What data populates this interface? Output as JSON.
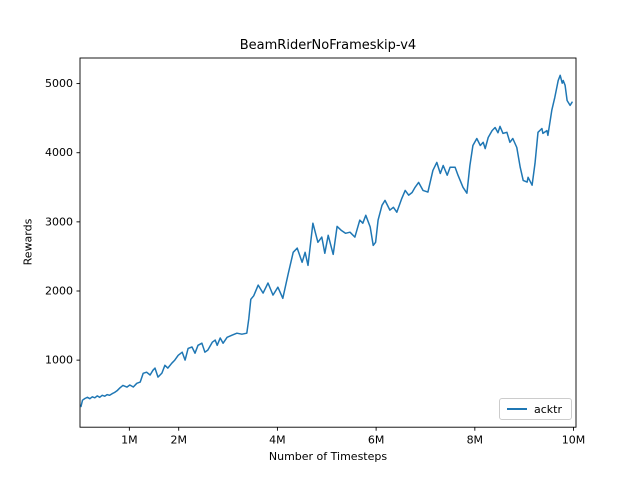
{
  "figure": {
    "title": "BeamRiderNoFrameskip-v4",
    "xlabel": "Number of Timesteps",
    "ylabel": "Rewards"
  },
  "legend": {
    "position": "lower right",
    "entries": [
      {
        "label": "acktr",
        "color": "#1f77b4"
      }
    ]
  },
  "colors": {
    "line": "#1f77b4",
    "axes": "#000000",
    "legend_border": "#cccccc",
    "background": "#ffffff"
  },
  "chart_data": {
    "type": "line",
    "title": "BeamRiderNoFrameskip-v4",
    "xlabel": "Number of Timesteps",
    "ylabel": "Rewards",
    "x_unit": "millions of timesteps",
    "grid": false,
    "legend_position": "lower right",
    "xlim_millions": [
      0,
      10.05
    ],
    "ylim": [
      30,
      5370
    ],
    "xticks": [
      {
        "value": 1,
        "label": "1M"
      },
      {
        "value": 2,
        "label": "2M"
      },
      {
        "value": 4,
        "label": "4M"
      },
      {
        "value": 6,
        "label": "6M"
      },
      {
        "value": 8,
        "label": "8M"
      },
      {
        "value": 10,
        "label": "10M"
      }
    ],
    "yticks": [
      {
        "value": 1000,
        "label": "1000"
      },
      {
        "value": 2000,
        "label": "2000"
      },
      {
        "value": 3000,
        "label": "3000"
      },
      {
        "value": 4000,
        "label": "4000"
      },
      {
        "value": 5000,
        "label": "5000"
      }
    ],
    "series": [
      {
        "name": "acktr",
        "color": "#1f77b4",
        "points": [
          [
            0.02,
            330
          ],
          [
            0.05,
            420
          ],
          [
            0.1,
            445
          ],
          [
            0.15,
            462
          ],
          [
            0.2,
            442
          ],
          [
            0.25,
            470
          ],
          [
            0.3,
            455
          ],
          [
            0.35,
            482
          ],
          [
            0.4,
            462
          ],
          [
            0.45,
            492
          ],
          [
            0.5,
            478
          ],
          [
            0.55,
            502
          ],
          [
            0.6,
            492
          ],
          [
            0.65,
            515
          ],
          [
            0.7,
            532
          ],
          [
            0.75,
            556
          ],
          [
            0.81,
            600
          ],
          [
            0.87,
            635
          ],
          [
            0.95,
            610
          ],
          [
            1.01,
            640
          ],
          [
            1.08,
            612
          ],
          [
            1.15,
            665
          ],
          [
            1.22,
            682
          ],
          [
            1.28,
            810
          ],
          [
            1.35,
            825
          ],
          [
            1.42,
            785
          ],
          [
            1.48,
            855
          ],
          [
            1.52,
            885
          ],
          [
            1.58,
            755
          ],
          [
            1.66,
            812
          ],
          [
            1.72,
            925
          ],
          [
            1.78,
            885
          ],
          [
            1.86,
            955
          ],
          [
            1.92,
            1000
          ],
          [
            1.99,
            1070
          ],
          [
            2.07,
            1115
          ],
          [
            2.13,
            1000
          ],
          [
            2.19,
            1170
          ],
          [
            2.27,
            1190
          ],
          [
            2.33,
            1100
          ],
          [
            2.39,
            1215
          ],
          [
            2.47,
            1245
          ],
          [
            2.53,
            1115
          ],
          [
            2.59,
            1145
          ],
          [
            2.68,
            1260
          ],
          [
            2.74,
            1290
          ],
          [
            2.78,
            1215
          ],
          [
            2.84,
            1320
          ],
          [
            2.9,
            1245
          ],
          [
            2.98,
            1330
          ],
          [
            3.08,
            1360
          ],
          [
            3.18,
            1390
          ],
          [
            3.28,
            1375
          ],
          [
            3.38,
            1390
          ],
          [
            3.42,
            1600
          ],
          [
            3.46,
            1880
          ],
          [
            3.52,
            1930
          ],
          [
            3.61,
            2085
          ],
          [
            3.71,
            1970
          ],
          [
            3.81,
            2115
          ],
          [
            3.91,
            1940
          ],
          [
            4.01,
            2055
          ],
          [
            4.11,
            1895
          ],
          [
            4.22,
            2255
          ],
          [
            4.32,
            2560
          ],
          [
            4.4,
            2620
          ],
          [
            4.5,
            2415
          ],
          [
            4.56,
            2560
          ],
          [
            4.62,
            2370
          ],
          [
            4.72,
            2980
          ],
          [
            4.82,
            2705
          ],
          [
            4.9,
            2780
          ],
          [
            4.96,
            2545
          ],
          [
            5.03,
            2805
          ],
          [
            5.13,
            2530
          ],
          [
            5.21,
            2935
          ],
          [
            5.29,
            2880
          ],
          [
            5.38,
            2835
          ],
          [
            5.47,
            2850
          ],
          [
            5.57,
            2780
          ],
          [
            5.67,
            3025
          ],
          [
            5.73,
            2980
          ],
          [
            5.79,
            3095
          ],
          [
            5.88,
            2925
          ],
          [
            5.94,
            2660
          ],
          [
            5.99,
            2705
          ],
          [
            6.04,
            3025
          ],
          [
            6.12,
            3240
          ],
          [
            6.18,
            3310
          ],
          [
            6.28,
            3170
          ],
          [
            6.35,
            3210
          ],
          [
            6.42,
            3140
          ],
          [
            6.52,
            3340
          ],
          [
            6.59,
            3455
          ],
          [
            6.66,
            3385
          ],
          [
            6.73,
            3425
          ],
          [
            6.79,
            3500
          ],
          [
            6.86,
            3570
          ],
          [
            6.95,
            3455
          ],
          [
            7.05,
            3430
          ],
          [
            7.15,
            3745
          ],
          [
            7.23,
            3860
          ],
          [
            7.3,
            3700
          ],
          [
            7.36,
            3815
          ],
          [
            7.44,
            3675
          ],
          [
            7.5,
            3790
          ],
          [
            7.6,
            3790
          ],
          [
            7.66,
            3675
          ],
          [
            7.76,
            3500
          ],
          [
            7.84,
            3415
          ],
          [
            7.9,
            3815
          ],
          [
            7.96,
            4105
          ],
          [
            8.04,
            4205
          ],
          [
            8.11,
            4105
          ],
          [
            8.17,
            4150
          ],
          [
            8.21,
            4060
          ],
          [
            8.27,
            4220
          ],
          [
            8.35,
            4320
          ],
          [
            8.41,
            4365
          ],
          [
            8.47,
            4290
          ],
          [
            8.51,
            4380
          ],
          [
            8.57,
            4280
          ],
          [
            8.65,
            4295
          ],
          [
            8.71,
            4150
          ],
          [
            8.77,
            4205
          ],
          [
            8.85,
            4075
          ],
          [
            8.92,
            3790
          ],
          [
            8.98,
            3600
          ],
          [
            9.06,
            3575
          ],
          [
            9.08,
            3645
          ],
          [
            9.16,
            3530
          ],
          [
            9.22,
            3845
          ],
          [
            9.28,
            4295
          ],
          [
            9.36,
            4350
          ],
          [
            9.38,
            4280
          ],
          [
            9.46,
            4320
          ],
          [
            9.48,
            4250
          ],
          [
            9.56,
            4615
          ],
          [
            9.62,
            4800
          ],
          [
            9.69,
            5045
          ],
          [
            9.73,
            5120
          ],
          [
            9.77,
            5005
          ],
          [
            9.79,
            5045
          ],
          [
            9.83,
            4975
          ],
          [
            9.87,
            4755
          ],
          [
            9.93,
            4685
          ],
          [
            9.97,
            4730
          ]
        ]
      }
    ]
  }
}
